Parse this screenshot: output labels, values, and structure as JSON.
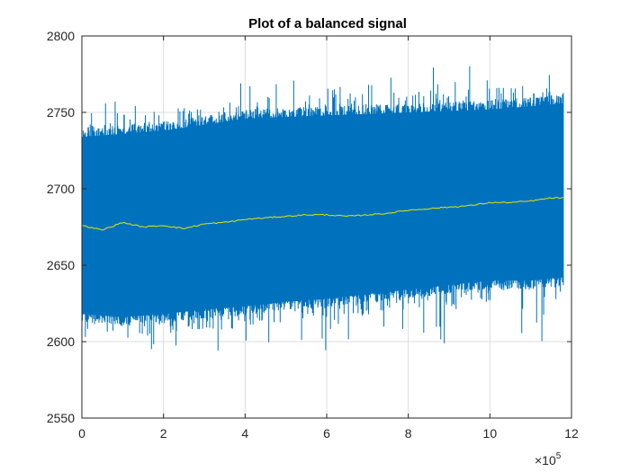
{
  "chart_data": {
    "type": "line",
    "title": "Plot of a balanced signal",
    "xlabel": "",
    "ylabel": "",
    "xlim": [
      0,
      1200000
    ],
    "ylim": [
      2550,
      2800
    ],
    "grid": true,
    "x_ticks": [
      0,
      200000,
      400000,
      600000,
      800000,
      1000000,
      1200000
    ],
    "x_tick_labels": [
      "0",
      "2",
      "4",
      "6",
      "8",
      "10",
      "12"
    ],
    "x_exponent": {
      "base": "×10",
      "power": "5"
    },
    "y_ticks": [
      2550,
      2600,
      2650,
      2700,
      2750,
      2800
    ],
    "y_tick_labels": [
      "2550",
      "2600",
      "2650",
      "2700",
      "2750",
      "2800"
    ],
    "colors": {
      "signal": "#0072bd",
      "mean": "#e6e600"
    },
    "series": [
      {
        "style": "signal-envelope",
        "color": "#0072bd",
        "x": [
          0,
          100000,
          200000,
          300000,
          400000,
          500000,
          600000,
          700000,
          800000,
          900000,
          1000000,
          1100000,
          1180000
        ],
        "upper": [
          2740,
          2742,
          2744,
          2748,
          2752,
          2753,
          2754,
          2755,
          2756,
          2757,
          2758,
          2760,
          2762
        ],
        "lower": [
          2612,
          2610,
          2612,
          2615,
          2617,
          2620,
          2622,
          2625,
          2628,
          2631,
          2634,
          2634,
          2636
        ],
        "peak_high": 2785,
        "peak_low": 2591
      },
      {
        "style": "mean-line",
        "color": "#e6e600",
        "x": [
          0,
          50000,
          100000,
          150000,
          200000,
          250000,
          300000,
          350000,
          400000,
          450000,
          500000,
          550000,
          600000,
          650000,
          700000,
          750000,
          800000,
          850000,
          900000,
          950000,
          1000000,
          1050000,
          1100000,
          1150000,
          1180000
        ],
        "values": [
          2676,
          2673,
          2678,
          2675,
          2676,
          2674,
          2677,
          2678,
          2680,
          2681,
          2682,
          2683,
          2683,
          2682,
          2683,
          2684,
          2686,
          2687,
          2688,
          2689,
          2691,
          2691,
          2692,
          2694,
          2694
        ]
      }
    ]
  }
}
